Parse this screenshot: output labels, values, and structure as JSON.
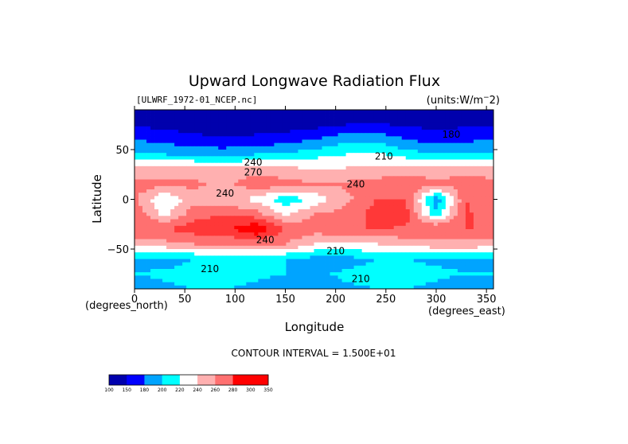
{
  "chart_data": {
    "type": "heatmap",
    "title": "Upward Longwave Radiation Flux",
    "file_label": "[ULWRF_1972-01_NCEP.nc]",
    "units_label": "(units:W/m^-2)",
    "xlabel": "Longitude",
    "ylabel": "Latitude",
    "x_unit_label": "(degrees_east)",
    "y_unit_label": "(degrees_north)",
    "xlim": [
      0,
      357
    ],
    "ylim": [
      -90,
      90
    ],
    "x_ticks": [
      0,
      50,
      100,
      150,
      200,
      250,
      300,
      350
    ],
    "y_ticks": [
      50,
      0,
      -50
    ],
    "contour_interval_text": "CONTOUR INTERVAL = 1.500E+01",
    "contour_labels": [
      {
        "text": "240",
        "lon": 118,
        "lat": 34
      },
      {
        "text": "270",
        "lon": 118,
        "lat": 24
      },
      {
        "text": "240",
        "lon": 90,
        "lat": 3
      },
      {
        "text": "240",
        "lon": 220,
        "lat": 12
      },
      {
        "text": "210",
        "lon": 248,
        "lat": 40
      },
      {
        "text": "240",
        "lon": 130,
        "lat": -44
      },
      {
        "text": "210",
        "lon": 200,
        "lat": -55
      },
      {
        "text": "210",
        "lon": 75,
        "lat": -73
      },
      {
        "text": "210",
        "lon": 225,
        "lat": -83
      },
      {
        "text": "180",
        "lon": 315,
        "lat": 62
      }
    ],
    "colorbar": {
      "ticks": [
        "100",
        "150",
        "180",
        "200",
        "220",
        "240",
        "260",
        "280",
        "300",
        "350"
      ],
      "colors": [
        "#0000ad",
        "#0000ff",
        "#00a4ff",
        "#00ffff",
        "#ffffff",
        "#ffb0b0",
        "#ff7070",
        "#ff0000",
        "#ff0000"
      ]
    },
    "latitudes": [
      90,
      75,
      60,
      45,
      30,
      15,
      0,
      -15,
      -30,
      -45,
      -60,
      -75,
      -90
    ],
    "longitudes": [
      0,
      30,
      60,
      90,
      120,
      150,
      180,
      210,
      240,
      270,
      300,
      330,
      357
    ],
    "values": [
      [
        170,
        170,
        170,
        170,
        170,
        170,
        170,
        170,
        170,
        170,
        170,
        170,
        170
      ],
      [
        178,
        175,
        172,
        170,
        170,
        172,
        175,
        180,
        182,
        178,
        175,
        178,
        178
      ],
      [
        195,
        190,
        185,
        182,
        185,
        188,
        195,
        205,
        205,
        195,
        188,
        192,
        195
      ],
      [
        212,
        210,
        205,
        205,
        210,
        212,
        220,
        225,
        228,
        218,
        210,
        212,
        212
      ],
      [
        245,
        248,
        250,
        245,
        248,
        245,
        240,
        242,
        245,
        250,
        248,
        250,
        245
      ],
      [
        262,
        260,
        258,
        250,
        265,
        262,
        255,
        258,
        262,
        265,
        258,
        262,
        262
      ],
      [
        258,
        225,
        250,
        245,
        235,
        215,
        230,
        250,
        270,
        270,
        200,
        270,
        258
      ],
      [
        265,
        235,
        265,
        270,
        262,
        238,
        255,
        262,
        275,
        275,
        215,
        272,
        265
      ],
      [
        270,
        270,
        278,
        280,
        300,
        268,
        262,
        265,
        272,
        268,
        272,
        270,
        270
      ],
      [
        248,
        250,
        255,
        255,
        258,
        255,
        240,
        238,
        240,
        245,
        250,
        250,
        248
      ],
      [
        208,
        205,
        210,
        212,
        212,
        210,
        205,
        205,
        210,
        210,
        208,
        208,
        208
      ],
      [
        210,
        212,
        215,
        215,
        212,
        210,
        208,
        212,
        215,
        215,
        212,
        210,
        210
      ],
      [
        205,
        208,
        210,
        210,
        208,
        205,
        205,
        208,
        210,
        210,
        208,
        205,
        205
      ]
    ]
  }
}
